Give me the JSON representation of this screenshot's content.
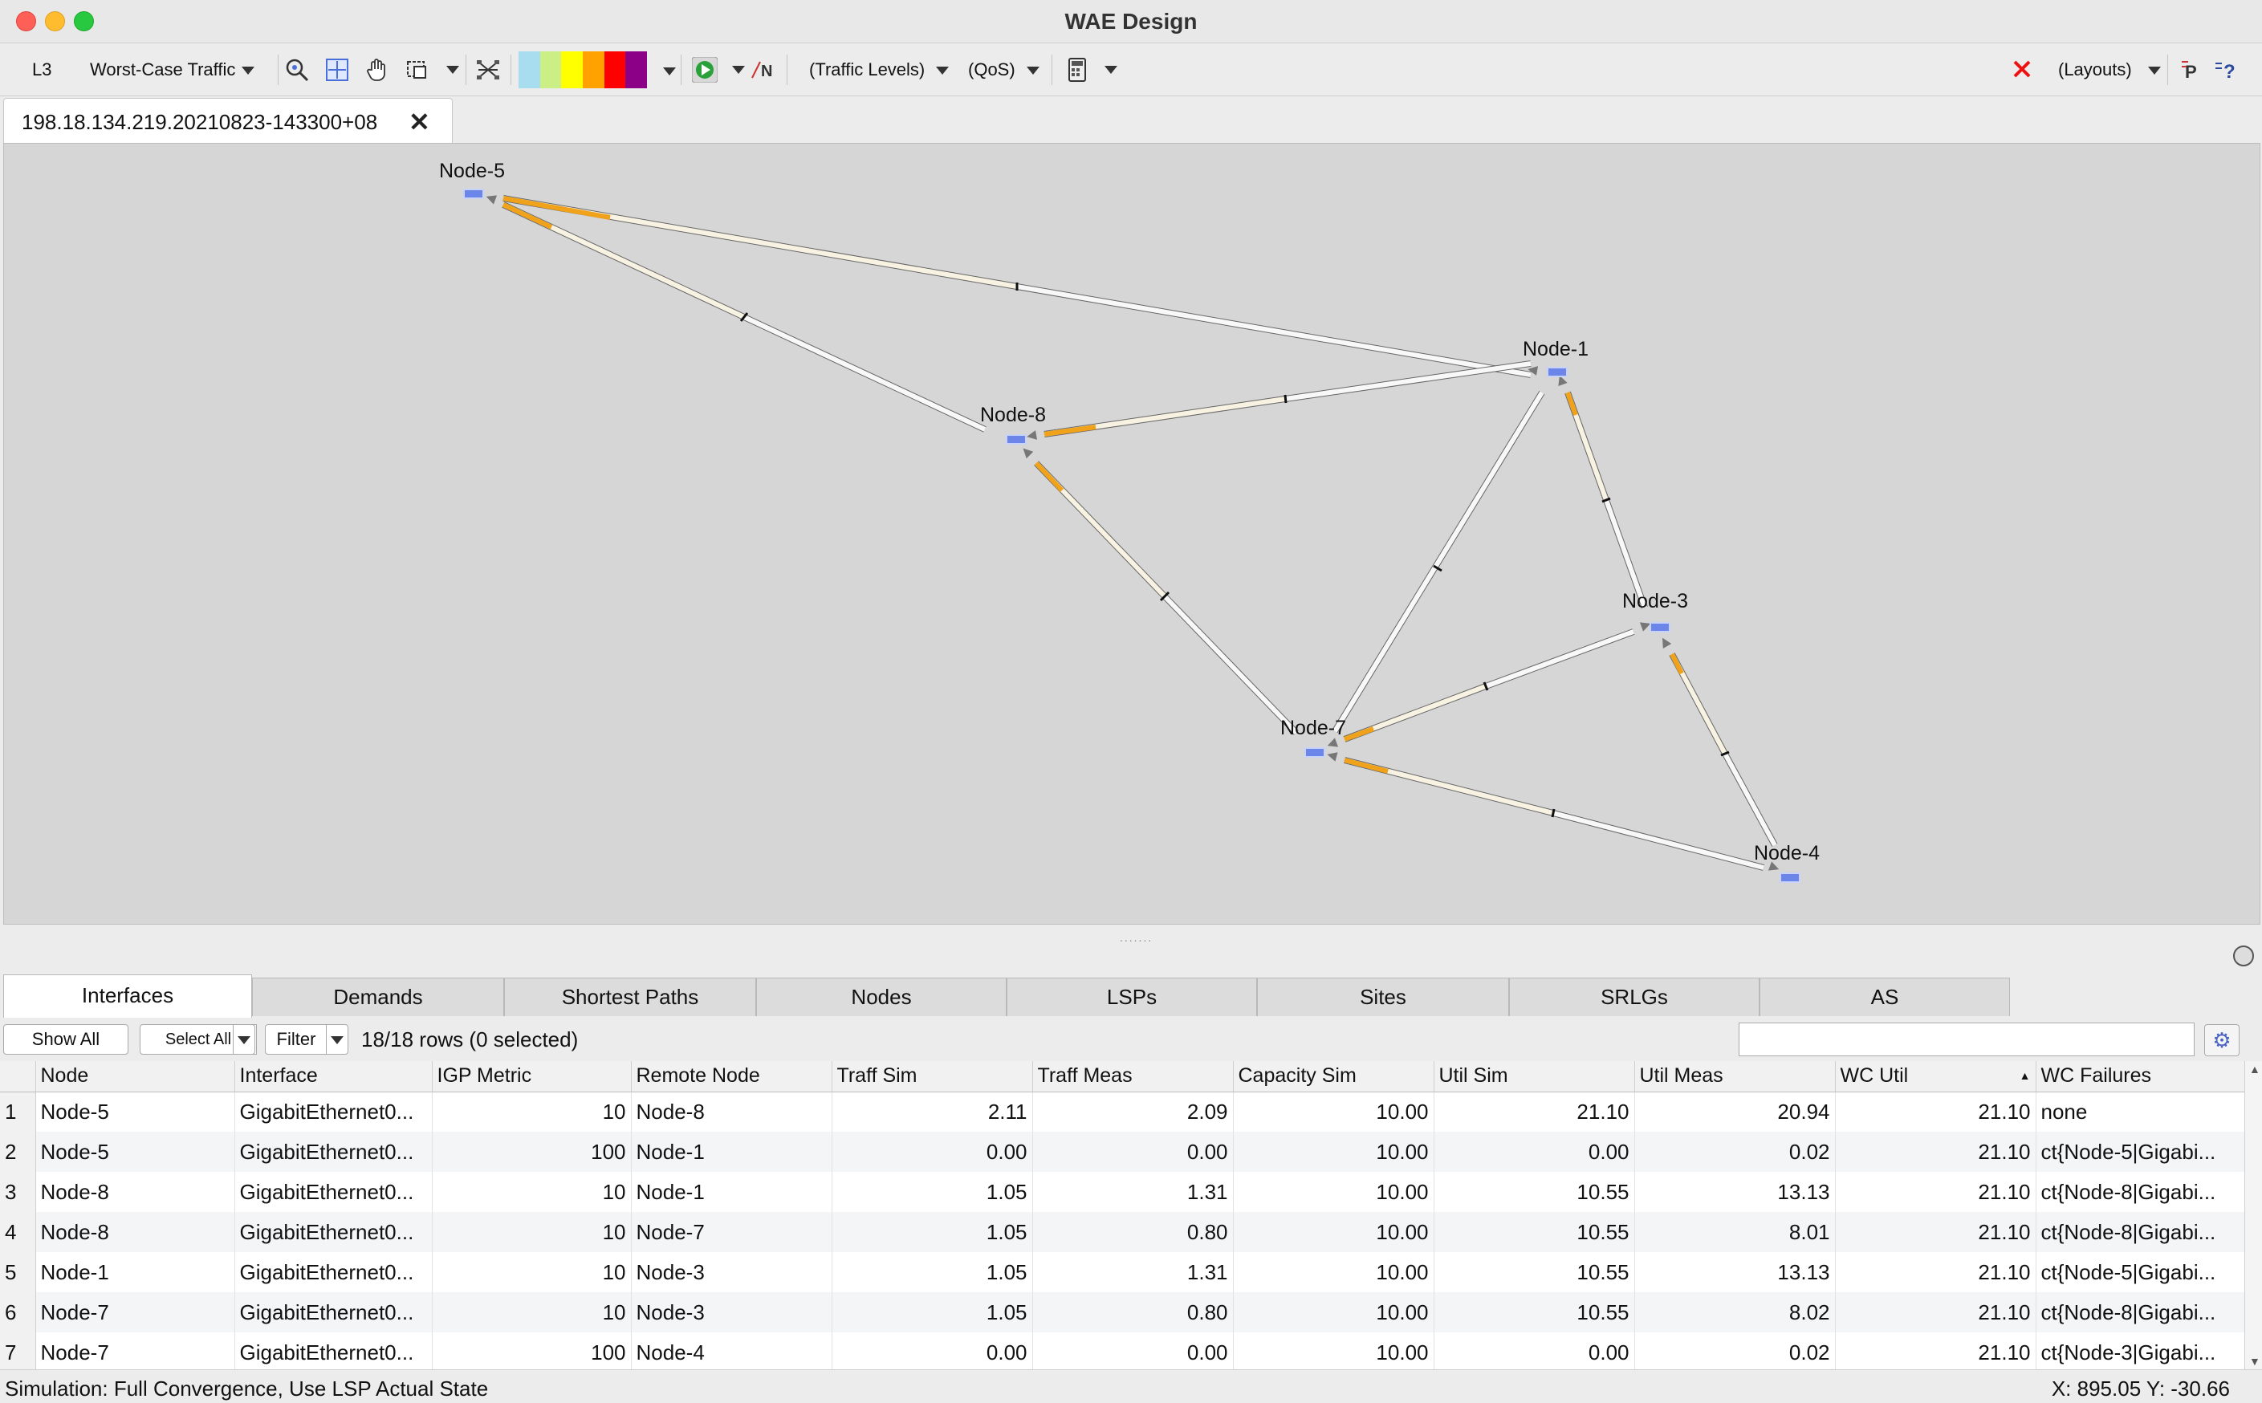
{
  "window": {
    "title": "WAE Design"
  },
  "toolbar": {
    "layer": "L3",
    "traffic_mode": "Worst-Case Traffic",
    "traffic_levels": "(Traffic Levels)",
    "qos": "(QoS)",
    "layouts": "(Layouts)",
    "n_label": "N",
    "p_label": "P",
    "help_label": "?",
    "color_swatches": [
      "#a8dcef",
      "#ccef85",
      "#ffff00",
      "#ffa200",
      "#ff0000",
      "#8b0087"
    ]
  },
  "document_tab": {
    "label": "198.18.134.219.20210823-143300+08"
  },
  "map": {
    "nodes": [
      {
        "name": "Node-5"
      },
      {
        "name": "Node-1"
      },
      {
        "name": "Node-8"
      },
      {
        "name": "Node-3"
      },
      {
        "name": "Node-7"
      },
      {
        "name": "Node-4"
      }
    ],
    "colors": {
      "background": "#d6d6d6",
      "high_util": "#f0a21a",
      "low_util": "#f8f2e2",
      "node": "#6b85e8"
    }
  },
  "bottom_tabs": [
    "Interfaces",
    "Demands",
    "Shortest Paths",
    "Nodes",
    "LSPs",
    "Sites",
    "SRLGs",
    "AS"
  ],
  "filter_bar": {
    "show_all": "Show All",
    "select_all": "Select All",
    "filter": "Filter",
    "rows_info": "18/18 rows (0 selected)",
    "search_placeholder": ""
  },
  "table": {
    "columns": [
      "Node",
      "Interface",
      "IGP Metric",
      "Remote Node",
      "Traff Sim",
      "Traff Meas",
      "Capacity Sim",
      "Util Sim",
      "Util Meas",
      "WC Util",
      "WC Failures"
    ],
    "rows": [
      {
        "n": "1",
        "node": "Node-5",
        "interface": "GigabitEthernet0...",
        "igp": "10",
        "remote": "Node-8",
        "traff_sim": "2.11",
        "traff_meas": "2.09",
        "cap_sim": "10.00",
        "util_sim": "21.10",
        "util_meas": "20.94",
        "wc_util": "21.10",
        "wc_fail": "none"
      },
      {
        "n": "2",
        "node": "Node-5",
        "interface": "GigabitEthernet0...",
        "igp": "100",
        "remote": "Node-1",
        "traff_sim": "0.00",
        "traff_meas": "0.00",
        "cap_sim": "10.00",
        "util_sim": "0.00",
        "util_meas": "0.02",
        "wc_util": "21.10",
        "wc_fail": "ct{Node-5|Gigabi..."
      },
      {
        "n": "3",
        "node": "Node-8",
        "interface": "GigabitEthernet0...",
        "igp": "10",
        "remote": "Node-1",
        "traff_sim": "1.05",
        "traff_meas": "1.31",
        "cap_sim": "10.00",
        "util_sim": "10.55",
        "util_meas": "13.13",
        "wc_util": "21.10",
        "wc_fail": "ct{Node-8|Gigabi..."
      },
      {
        "n": "4",
        "node": "Node-8",
        "interface": "GigabitEthernet0...",
        "igp": "10",
        "remote": "Node-7",
        "traff_sim": "1.05",
        "traff_meas": "0.80",
        "cap_sim": "10.00",
        "util_sim": "10.55",
        "util_meas": "8.01",
        "wc_util": "21.10",
        "wc_fail": "ct{Node-8|Gigabi..."
      },
      {
        "n": "5",
        "node": "Node-1",
        "interface": "GigabitEthernet0...",
        "igp": "10",
        "remote": "Node-3",
        "traff_sim": "1.05",
        "traff_meas": "1.31",
        "cap_sim": "10.00",
        "util_sim": "10.55",
        "util_meas": "13.13",
        "wc_util": "21.10",
        "wc_fail": "ct{Node-5|Gigabi..."
      },
      {
        "n": "6",
        "node": "Node-7",
        "interface": "GigabitEthernet0...",
        "igp": "10",
        "remote": "Node-3",
        "traff_sim": "1.05",
        "traff_meas": "0.80",
        "cap_sim": "10.00",
        "util_sim": "10.55",
        "util_meas": "8.02",
        "wc_util": "21.10",
        "wc_fail": "ct{Node-8|Gigabi..."
      },
      {
        "n": "7",
        "node": "Node-7",
        "interface": "GigabitEthernet0...",
        "igp": "100",
        "remote": "Node-4",
        "traff_sim": "0.00",
        "traff_meas": "0.00",
        "cap_sim": "10.00",
        "util_sim": "0.00",
        "util_meas": "0.02",
        "wc_util": "21.10",
        "wc_fail": "ct{Node-3|Gigabi..."
      }
    ]
  },
  "status": {
    "text": "Simulation: Full Convergence, Use LSP Actual State",
    "coords": "X: 895.05  Y: -30.66"
  }
}
